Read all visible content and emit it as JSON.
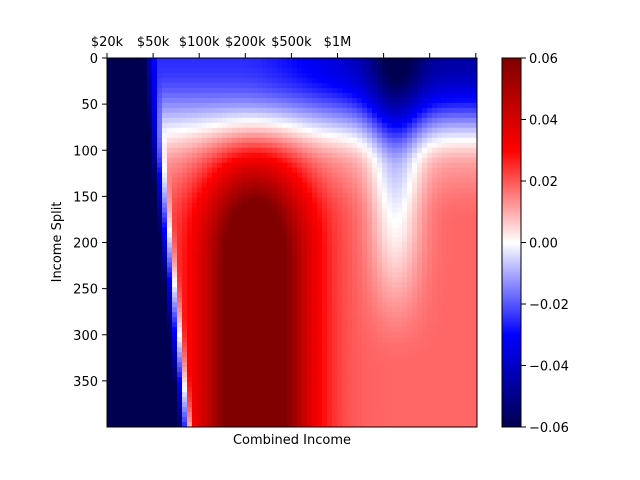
{
  "chart_data": {
    "type": "heatmap",
    "title": "",
    "xlabel": "Combined Income",
    "ylabel": "Income Split",
    "x_tick_position": "top",
    "x_ticks": [
      {
        "label": "$20k"
      },
      {
        "label": "$50k"
      },
      {
        "label": "$100k"
      },
      {
        "label": "$200k"
      },
      {
        "label": "$500k"
      },
      {
        "label": "$1M"
      },
      {
        "label": ""
      },
      {
        "label": ""
      },
      {
        "label": ""
      }
    ],
    "y_ticks": [
      0,
      50,
      100,
      150,
      200,
      250,
      300,
      350
    ],
    "y_range": [
      0,
      400
    ],
    "y_inverted": true,
    "colormap": "seismic",
    "colorbar": {
      "range": [
        -0.06,
        0.06
      ],
      "ticks": [
        0.06,
        0.04,
        0.02,
        0.0,
        -0.02,
        -0.04,
        -0.06
      ],
      "tick_labels": [
        "0.06",
        "0.04",
        "0.02",
        "0.00",
        "−0.02",
        "−0.04",
        "−0.06"
      ]
    },
    "grid": false,
    "series_note_values": "approximate field: strongly negative (~-0.06) at low combined income, positive (~0.06) around $100k-$200k at high income split, mildly positive at high income, negative near split 0"
  }
}
